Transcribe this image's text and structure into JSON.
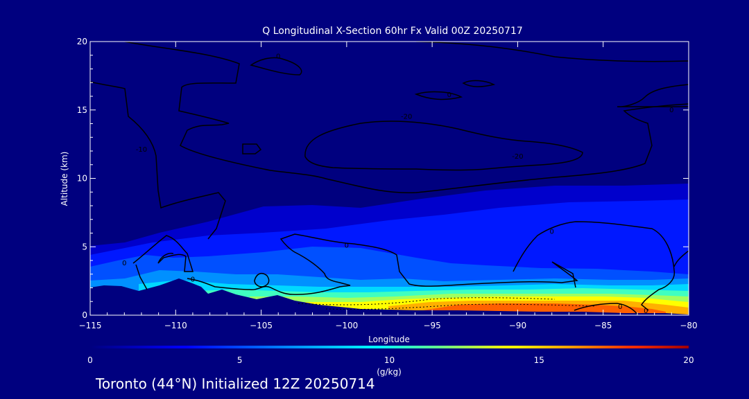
{
  "chart_data": {
    "type": "heatmap",
    "title": "Q Longitudinal X-Section 60hr  Fx Valid 00Z 20250717",
    "xlabel": "Longitude",
    "ylabel": "Altitude (km)",
    "xlim": [
      -115,
      -80
    ],
    "ylim": [
      0,
      20
    ],
    "x_ticks": [
      -115,
      -110,
      -105,
      -100,
      -95,
      -90,
      -85,
      -80
    ],
    "y_ticks": [
      0,
      5,
      10,
      15,
      20
    ],
    "colorbar": {
      "label": "(g/kg)",
      "range": [
        0,
        20
      ],
      "ticks": [
        0,
        5,
        10,
        15,
        20
      ],
      "stops": [
        "#00007f",
        "#0000ff",
        "#00a0ff",
        "#00ffff",
        "#60ff90",
        "#ffff00",
        "#ffa000",
        "#ff3000",
        "#9f0000"
      ]
    },
    "contour_labels": [
      {
        "text": "0",
        "x": -104,
        "y": 18.9
      },
      {
        "text": "0",
        "x": -94,
        "y": 16.1
      },
      {
        "text": "0",
        "x": -81,
        "y": 15.0
      },
      {
        "text": "-10",
        "x": -112,
        "y": 12.1
      },
      {
        "text": "-20",
        "x": -96.5,
        "y": 14.5
      },
      {
        "text": "-20",
        "x": -90,
        "y": 11.6
      },
      {
        "text": "0",
        "x": -100,
        "y": 5.1
      },
      {
        "text": "0",
        "x": -113,
        "y": 3.8
      },
      {
        "text": "0",
        "x": -109,
        "y": 2.6
      },
      {
        "text": "0",
        "x": -88,
        "y": 6.1
      },
      {
        "text": "0",
        "x": -84,
        "y": 0.6
      },
      {
        "text": "0",
        "x": -82.5,
        "y": 0.3
      }
    ]
  },
  "footer": {
    "text": "Toronto (44°N) Initialized 12Z 20250714"
  },
  "colors": {
    "background": "#00007f",
    "axis": "#ffffff",
    "terrain": "#00007f",
    "contour": "#000000"
  }
}
